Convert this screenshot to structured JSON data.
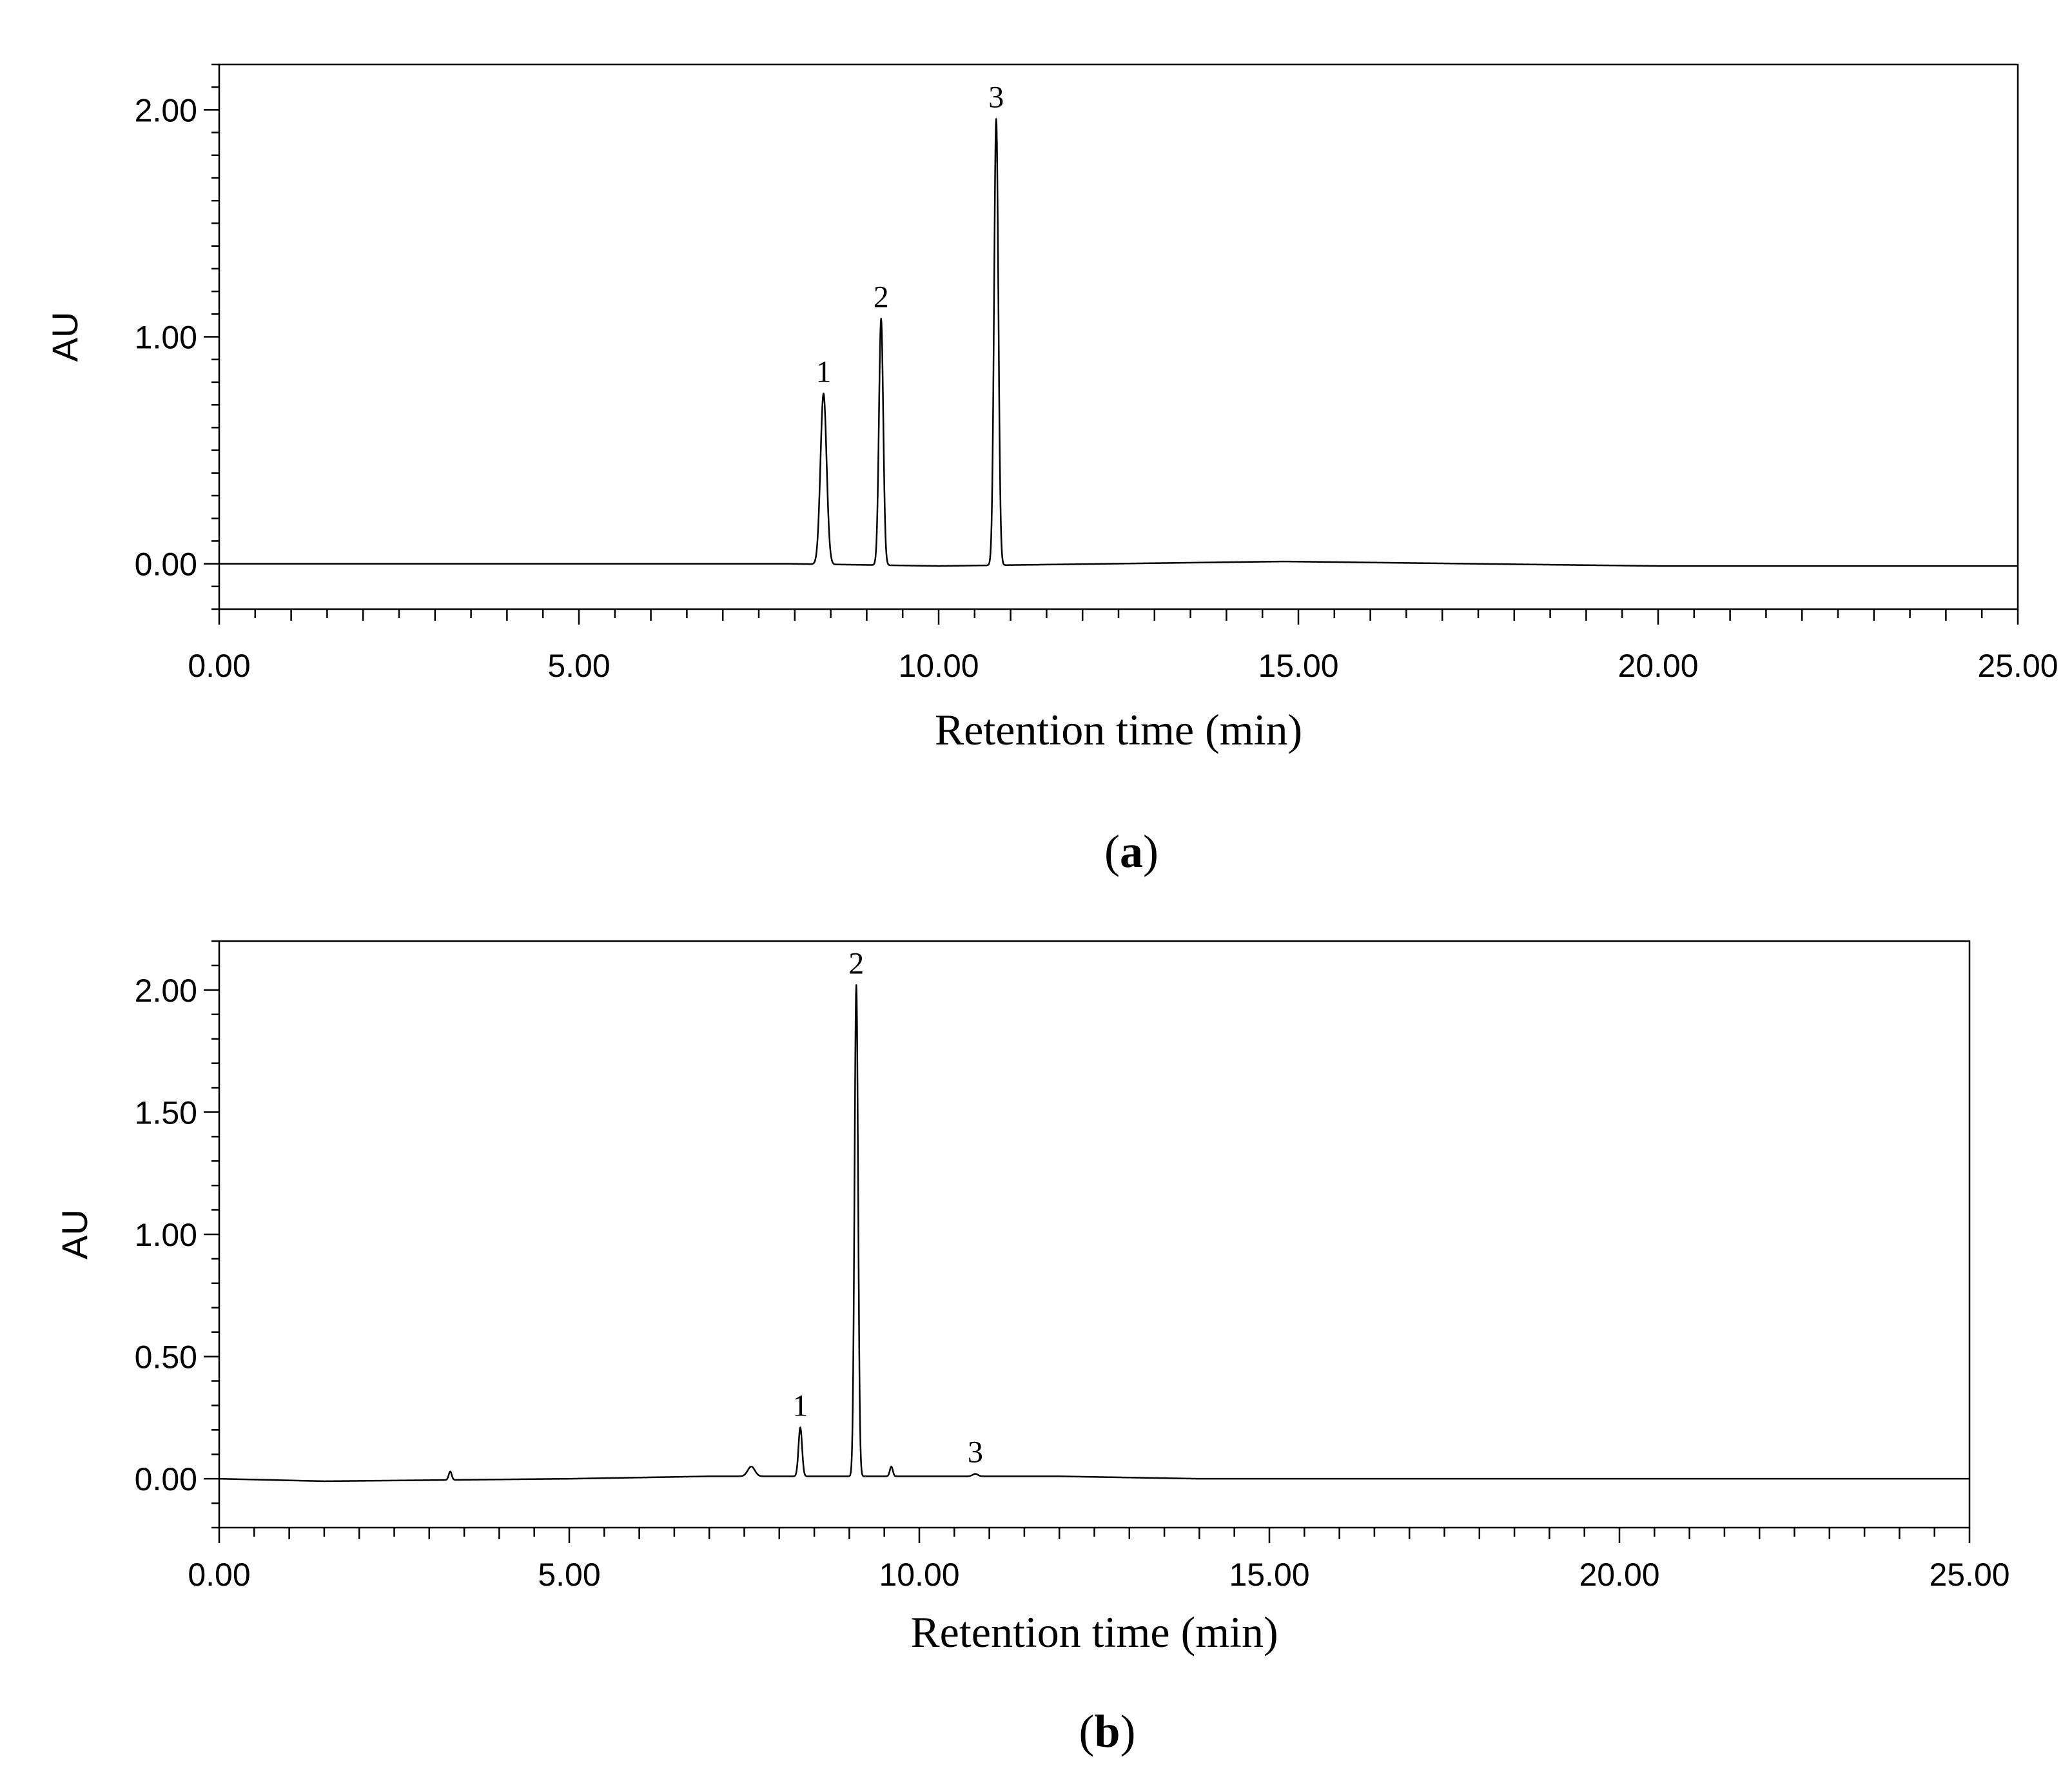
{
  "chart_data": [
    {
      "type": "line",
      "panel_label": "a",
      "xlabel": "Retention time (min)",
      "ylabel": "AU",
      "xlim": [
        0,
        25
      ],
      "ylim": [
        -0.2,
        2.2
      ],
      "x_ticks": [
        "0.00",
        "5.00",
        "10.00",
        "15.00",
        "20.00",
        "25.00"
      ],
      "y_ticks": [
        "0.00",
        "1.00",
        "2.00"
      ],
      "grid": false,
      "peaks": [
        {
          "label": "1",
          "x": 8.4,
          "y": 0.75,
          "width": 0.1
        },
        {
          "label": "2",
          "x": 9.2,
          "y": 1.08,
          "width": 0.07
        },
        {
          "label": "3",
          "x": 10.8,
          "y": 1.96,
          "width": 0.07
        }
      ],
      "baseline": [
        [
          0,
          0.0
        ],
        [
          7.9,
          0.0
        ],
        [
          10.0,
          -0.01
        ],
        [
          14.8,
          0.01
        ],
        [
          20.0,
          -0.01
        ],
        [
          25.0,
          -0.01
        ]
      ]
    },
    {
      "type": "line",
      "panel_label": "b",
      "xlabel": "Retention time (min)",
      "ylabel": "AU",
      "xlim": [
        0,
        25
      ],
      "ylim": [
        -0.2,
        2.2
      ],
      "x_ticks": [
        "0.00",
        "5.00",
        "10.00",
        "15.00",
        "20.00",
        "25.00"
      ],
      "y_ticks": [
        "0.00",
        "0.50",
        "1.00",
        "1.50",
        "2.00"
      ],
      "grid": false,
      "peaks": [
        {
          "label": "1",
          "x": 8.3,
          "y": 0.21,
          "width": 0.06
        },
        {
          "label": "2",
          "x": 9.1,
          "y": 2.02,
          "width": 0.06
        },
        {
          "label": "3",
          "x": 10.8,
          "y": 0.02,
          "width": 0.09
        }
      ],
      "minor_peaks": [
        {
          "x": 3.3,
          "y": 0.03,
          "width": 0.05
        },
        {
          "x": 7.6,
          "y": 0.05,
          "width": 0.12
        },
        {
          "x": 9.6,
          "y": 0.05,
          "width": 0.05
        }
      ],
      "baseline": [
        [
          0,
          0.0
        ],
        [
          1.5,
          -0.01
        ],
        [
          5.0,
          0.0
        ],
        [
          7.0,
          0.01
        ],
        [
          12.0,
          0.01
        ],
        [
          14.0,
          0.0
        ],
        [
          21.0,
          0.0
        ],
        [
          25.0,
          0.0
        ]
      ]
    }
  ]
}
